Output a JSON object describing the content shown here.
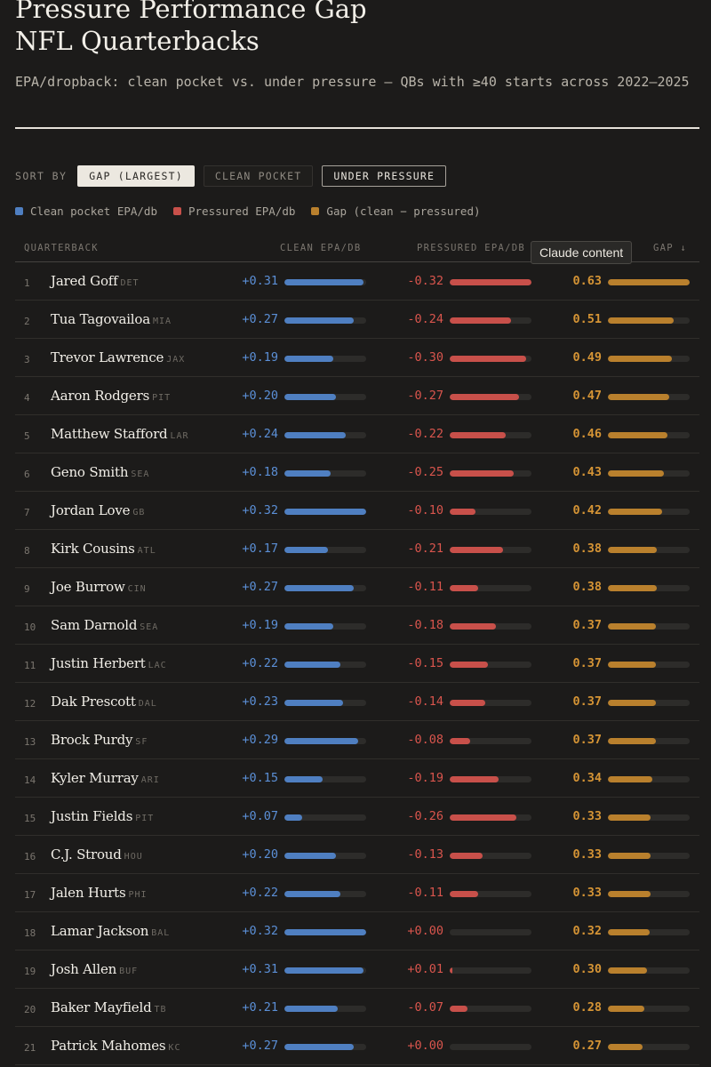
{
  "header": {
    "title_line1": "Pressure Performance Gap",
    "title_line2": "NFL Quarterbacks",
    "subtitle": "EPA/dropback: clean pocket vs. under pressure — QBs with ≥40 starts across 2022–2025"
  },
  "sort": {
    "label": "SORT BY",
    "options": [
      "GAP (LARGEST)",
      "CLEAN POCKET",
      "UNDER PRESSURE"
    ],
    "selected": "GAP (LARGEST)"
  },
  "legend": {
    "clean": "Clean pocket EPA/db",
    "pressured": "Pressured EPA/db",
    "gap": "Gap (clean − pressured)"
  },
  "table": {
    "columns": {
      "qb": "QUARTERBACK",
      "clean": "CLEAN EPA/DB",
      "pressured": "PRESSURED EPA/DB",
      "gap": "GAP ↓"
    },
    "tooltip": "Claude content"
  },
  "colors": {
    "clean": "#4f7fc1",
    "pressured": "#c8504a",
    "gap": "#b9802d",
    "background": "#1c1b1a"
  },
  "chart_data": {
    "type": "table",
    "title": "Pressure Performance Gap NFL Quarterbacks",
    "metric": "EPA/dropback",
    "series": [
      {
        "name": "Clean pocket EPA/db",
        "key": "clean"
      },
      {
        "name": "Pressured EPA/db",
        "key": "pressured"
      },
      {
        "name": "Gap (clean − pressured)",
        "key": "gap"
      }
    ],
    "bar_scale_max": {
      "clean": 0.32,
      "pressured": 0.32,
      "gap": 0.63
    },
    "rows": [
      {
        "rank": "1",
        "name": "Jared Goff",
        "team": "DET",
        "clean": 0.31,
        "pressured": -0.32,
        "gap": 0.63,
        "clean_label": "+0.31",
        "pressured_label": "-0.32",
        "gap_label": "0.63"
      },
      {
        "rank": "2",
        "name": "Tua Tagovailoa",
        "team": "MIA",
        "clean": 0.27,
        "pressured": -0.24,
        "gap": 0.51,
        "clean_label": "+0.27",
        "pressured_label": "-0.24",
        "gap_label": "0.51"
      },
      {
        "rank": "3",
        "name": "Trevor Lawrence",
        "team": "JAX",
        "clean": 0.19,
        "pressured": -0.3,
        "gap": 0.49,
        "clean_label": "+0.19",
        "pressured_label": "-0.30",
        "gap_label": "0.49"
      },
      {
        "rank": "4",
        "name": "Aaron Rodgers",
        "team": "PIT",
        "clean": 0.2,
        "pressured": -0.27,
        "gap": 0.47,
        "clean_label": "+0.20",
        "pressured_label": "-0.27",
        "gap_label": "0.47"
      },
      {
        "rank": "5",
        "name": "Matthew Stafford",
        "team": "LAR",
        "clean": 0.24,
        "pressured": -0.22,
        "gap": 0.46,
        "clean_label": "+0.24",
        "pressured_label": "-0.22",
        "gap_label": "0.46"
      },
      {
        "rank": "6",
        "name": "Geno Smith",
        "team": "SEA",
        "clean": 0.18,
        "pressured": -0.25,
        "gap": 0.43,
        "clean_label": "+0.18",
        "pressured_label": "-0.25",
        "gap_label": "0.43"
      },
      {
        "rank": "7",
        "name": "Jordan Love",
        "team": "GB",
        "clean": 0.32,
        "pressured": -0.1,
        "gap": 0.42,
        "clean_label": "+0.32",
        "pressured_label": "-0.10",
        "gap_label": "0.42"
      },
      {
        "rank": "8",
        "name": "Kirk Cousins",
        "team": "ATL",
        "clean": 0.17,
        "pressured": -0.21,
        "gap": 0.38,
        "clean_label": "+0.17",
        "pressured_label": "-0.21",
        "gap_label": "0.38"
      },
      {
        "rank": "9",
        "name": "Joe Burrow",
        "team": "CIN",
        "clean": 0.27,
        "pressured": -0.11,
        "gap": 0.38,
        "clean_label": "+0.27",
        "pressured_label": "-0.11",
        "gap_label": "0.38"
      },
      {
        "rank": "10",
        "name": "Sam Darnold",
        "team": "SEA",
        "clean": 0.19,
        "pressured": -0.18,
        "gap": 0.37,
        "clean_label": "+0.19",
        "pressured_label": "-0.18",
        "gap_label": "0.37"
      },
      {
        "rank": "11",
        "name": "Justin Herbert",
        "team": "LAC",
        "clean": 0.22,
        "pressured": -0.15,
        "gap": 0.37,
        "clean_label": "+0.22",
        "pressured_label": "-0.15",
        "gap_label": "0.37"
      },
      {
        "rank": "12",
        "name": "Dak Prescott",
        "team": "DAL",
        "clean": 0.23,
        "pressured": -0.14,
        "gap": 0.37,
        "clean_label": "+0.23",
        "pressured_label": "-0.14",
        "gap_label": "0.37"
      },
      {
        "rank": "13",
        "name": "Brock Purdy",
        "team": "SF",
        "clean": 0.29,
        "pressured": -0.08,
        "gap": 0.37,
        "clean_label": "+0.29",
        "pressured_label": "-0.08",
        "gap_label": "0.37"
      },
      {
        "rank": "14",
        "name": "Kyler Murray",
        "team": "ARI",
        "clean": 0.15,
        "pressured": -0.19,
        "gap": 0.34,
        "clean_label": "+0.15",
        "pressured_label": "-0.19",
        "gap_label": "0.34"
      },
      {
        "rank": "15",
        "name": "Justin Fields",
        "team": "PIT",
        "clean": 0.07,
        "pressured": -0.26,
        "gap": 0.33,
        "clean_label": "+0.07",
        "pressured_label": "-0.26",
        "gap_label": "0.33"
      },
      {
        "rank": "16",
        "name": "C.J. Stroud",
        "team": "HOU",
        "clean": 0.2,
        "pressured": -0.13,
        "gap": 0.33,
        "clean_label": "+0.20",
        "pressured_label": "-0.13",
        "gap_label": "0.33"
      },
      {
        "rank": "17",
        "name": "Jalen Hurts",
        "team": "PHI",
        "clean": 0.22,
        "pressured": -0.11,
        "gap": 0.33,
        "clean_label": "+0.22",
        "pressured_label": "-0.11",
        "gap_label": "0.33"
      },
      {
        "rank": "18",
        "name": "Lamar Jackson",
        "team": "BAL",
        "clean": 0.32,
        "pressured": 0.0,
        "gap": 0.32,
        "clean_label": "+0.32",
        "pressured_label": "+0.00",
        "gap_label": "0.32"
      },
      {
        "rank": "19",
        "name": "Josh Allen",
        "team": "BUF",
        "clean": 0.31,
        "pressured": 0.01,
        "gap": 0.3,
        "clean_label": "+0.31",
        "pressured_label": "+0.01",
        "gap_label": "0.30"
      },
      {
        "rank": "20",
        "name": "Baker Mayfield",
        "team": "TB",
        "clean": 0.21,
        "pressured": -0.07,
        "gap": 0.28,
        "clean_label": "+0.21",
        "pressured_label": "-0.07",
        "gap_label": "0.28"
      },
      {
        "rank": "21",
        "name": "Patrick Mahomes",
        "team": "KC",
        "clean": 0.27,
        "pressured": 0.0,
        "gap": 0.27,
        "clean_label": "+0.27",
        "pressured_label": "+0.00",
        "gap_label": "0.27"
      }
    ]
  }
}
